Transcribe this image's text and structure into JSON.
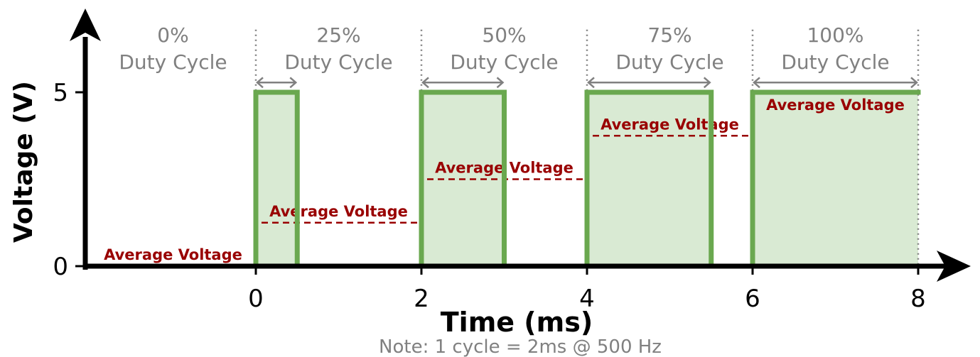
{
  "chart_data": {
    "type": "line",
    "xlabel": "Time (ms)",
    "ylabel": "Voltage (V)",
    "note": "Note: 1 cycle = 2ms @ 500 Hz",
    "x_ticks": [
      0,
      2,
      4,
      6,
      8
    ],
    "y_ticks": [
      0,
      5
    ],
    "xlim": [
      -2,
      8
    ],
    "ylim": [
      0,
      5
    ],
    "grid": false,
    "segments": [
      {
        "start": -2,
        "end": 0,
        "duty_percent": 0,
        "duty_label": "0%",
        "duty_sublabel": "Duty Cycle",
        "average_voltage": 0,
        "average_label": "Average Voltage"
      },
      {
        "start": 0,
        "end": 2,
        "duty_percent": 25,
        "duty_label": "25%",
        "duty_sublabel": "Duty Cycle",
        "average_voltage": 1.25,
        "average_label": "Average Voltage"
      },
      {
        "start": 2,
        "end": 4,
        "duty_percent": 50,
        "duty_label": "50%",
        "duty_sublabel": "Duty Cycle",
        "average_voltage": 2.5,
        "average_label": "Average Voltage"
      },
      {
        "start": 4,
        "end": 6,
        "duty_percent": 75,
        "duty_label": "75%",
        "duty_sublabel": "Duty Cycle",
        "average_voltage": 3.75,
        "average_label": "Average Voltage"
      },
      {
        "start": 6,
        "end": 8,
        "duty_percent": 100,
        "duty_label": "100%",
        "duty_sublabel": "Duty Cycle",
        "average_voltage": 5,
        "average_label": "Average Voltage"
      }
    ],
    "series": [
      {
        "x": [
          -2,
          0,
          0,
          0.5,
          0.5,
          2,
          2,
          3,
          3,
          4,
          4,
          5.5,
          5.5,
          6,
          6,
          8
        ],
        "y": [
          0,
          0,
          5,
          5,
          0,
          0,
          5,
          5,
          0,
          0,
          5,
          5,
          0,
          0,
          5,
          5
        ]
      }
    ],
    "colors": {
      "signal": "#6aa84f",
      "fill": "#d9ead3",
      "average": "#990000",
      "duty": "#808080",
      "axis": "#000000"
    }
  }
}
